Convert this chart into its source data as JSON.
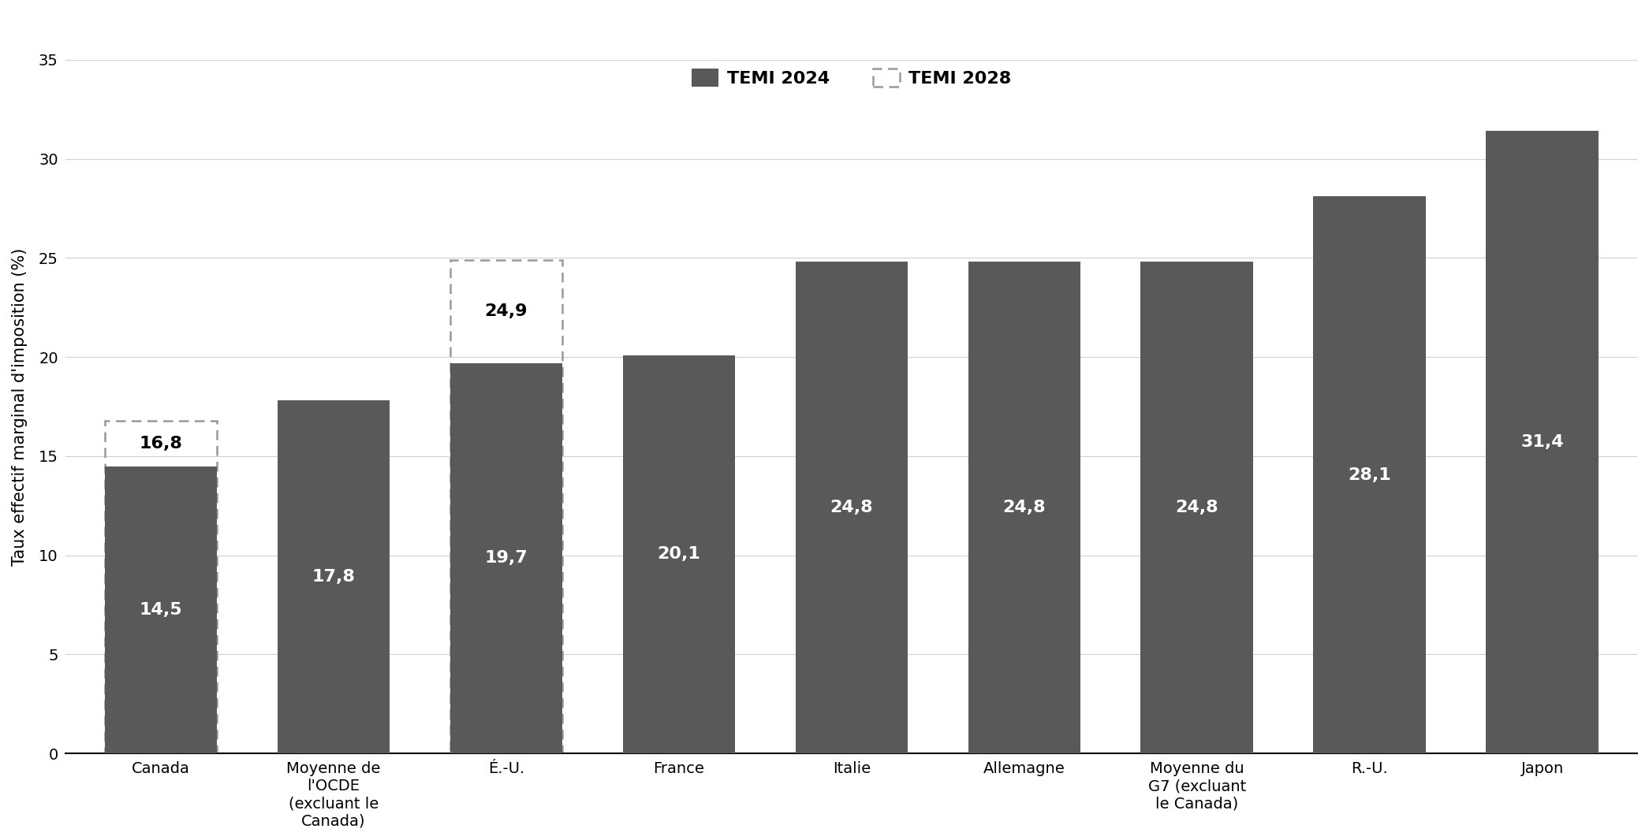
{
  "categories": [
    "Canada",
    "Moyenne de\nl'OCDE\n(excluant le\nCanada)",
    "É.-U.",
    "France",
    "Italie",
    "Allemagne",
    "Moyenne du\nG7 (excluant\nle Canada)",
    "R.-U.",
    "Japon"
  ],
  "values_2024": [
    14.5,
    17.8,
    19.7,
    20.1,
    24.8,
    24.8,
    24.8,
    28.1,
    31.4
  ],
  "values_2028": [
    16.8,
    null,
    24.9,
    null,
    null,
    null,
    null,
    null,
    null
  ],
  "bar_color": "#595959",
  "dashed_outline_color": "#999999",
  "ylabel": "Taux effectif marginal d'imposition (%)",
  "ylim": [
    0,
    35
  ],
  "yticks": [
    0,
    5,
    10,
    15,
    20,
    25,
    30,
    35
  ],
  "legend_2024_label": "TEMI 2024",
  "legend_2028_label": "TEMI 2028",
  "background_color": "#ffffff",
  "bar_label_color_inside": "#ffffff",
  "bar_label_color_outside": "#000000",
  "label_fontsize": 16,
  "axis_fontsize": 15,
  "legend_fontsize": 16,
  "tick_fontsize": 14
}
